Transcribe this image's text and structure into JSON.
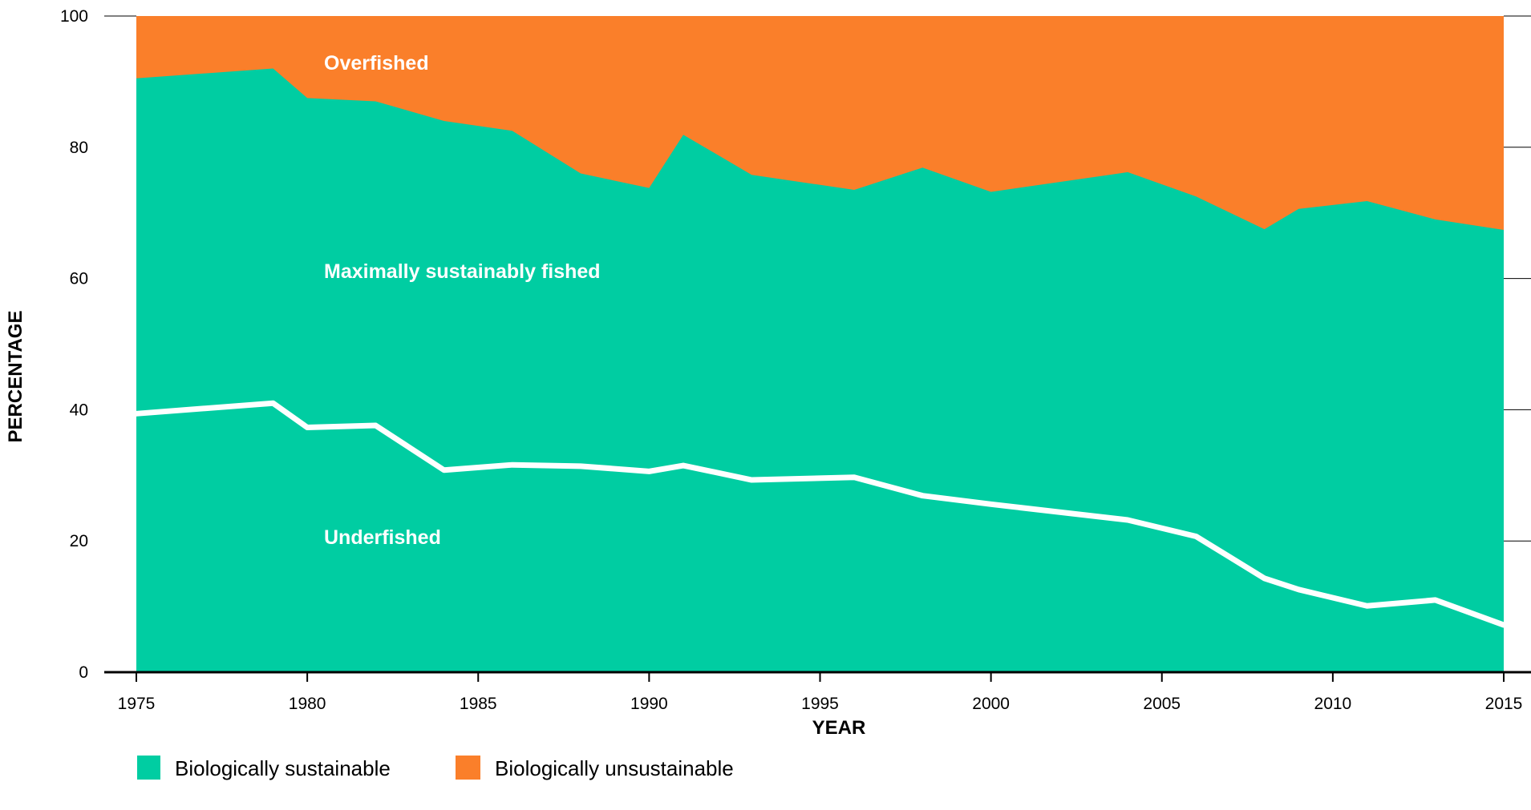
{
  "chart_data": {
    "type": "area",
    "xlabel": "YEAR",
    "ylabel": "PERCENTAGE",
    "xlim": [
      1975,
      2015
    ],
    "ylim": [
      0,
      100
    ],
    "x_ticks": [
      "1975",
      "1980",
      "1985",
      "1990",
      "1995",
      "2000",
      "2005",
      "2010",
      "2015"
    ],
    "y_ticks": [
      "0",
      "20",
      "40",
      "60",
      "80",
      "100"
    ],
    "grid": false,
    "legend_position": "bottom-left",
    "x": [
      1974,
      1979,
      1980,
      1982,
      1984,
      1986,
      1988,
      1990,
      1991,
      1993,
      1996,
      1998,
      2000,
      2004,
      2006,
      2008,
      2009,
      2011,
      2013,
      2015
    ],
    "series": [
      {
        "name": "Biologically sustainable",
        "color": "#00cda2",
        "values": [
          90.5,
          92.0,
          87.5,
          87.0,
          84.0,
          82.5,
          76.0,
          73.8,
          81.9,
          75.8,
          73.5,
          76.9,
          73.2,
          76.2,
          72.5,
          67.5,
          70.6,
          71.8,
          69.0,
          67.4
        ]
      },
      {
        "name": "Biologically unsustainable",
        "color": "#fa7f2a",
        "values": [
          9.5,
          8.0,
          12.5,
          13.0,
          16.0,
          17.5,
          24.0,
          26.2,
          18.1,
          24.2,
          26.5,
          23.1,
          26.8,
          23.8,
          27.5,
          32.5,
          29.4,
          28.2,
          31.0,
          32.6
        ]
      }
    ],
    "underfished_line": {
      "color": "#ffffff",
      "values": [
        39.4,
        41.0,
        37.3,
        37.6,
        30.8,
        31.6,
        31.4,
        30.6,
        31.5,
        29.3,
        29.7,
        26.9,
        25.6,
        23.2,
        20.7,
        14.3,
        12.6,
        10.1,
        11.0,
        7.2
      ]
    },
    "annotations": {
      "overfished": "Overfished",
      "maximally_sustainably_fished": "Maximally sustainably fished",
      "underfished": "Underfished"
    }
  }
}
